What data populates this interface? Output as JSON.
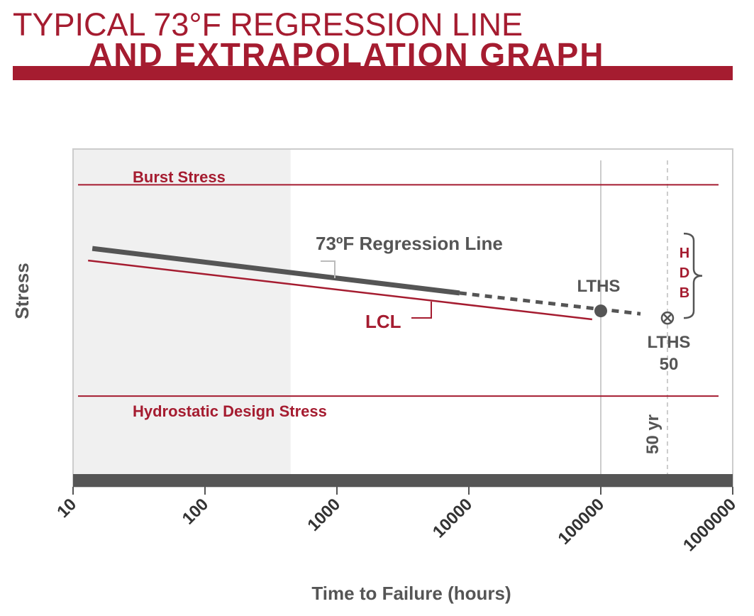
{
  "title": "TYPICAL 73°F REGRESSION LINE",
  "subtitle": "AND EXTRAPOLATION GRAPH",
  "chart_data": {
    "type": "line",
    "x_label": "Time to Failure (hours)",
    "y_label": "Stress",
    "xscale": "log",
    "xlim": [
      10,
      1000000
    ],
    "xticks": [
      10,
      100,
      1000,
      10000,
      100000,
      1000000
    ],
    "ylim": [
      0,
      100
    ],
    "shaded_x": [
      10,
      440
    ],
    "shade_color": "#f0f0f0",
    "reference_lines": [
      {
        "label": "Burst Stress",
        "value": 89,
        "color": "#a51c30"
      },
      {
        "label": "Hydrostatic Design Stress",
        "value": 24,
        "color": "#a51c30"
      }
    ],
    "series": [
      {
        "name": "73ºF Regression Line",
        "color": "#555555",
        "x": [
          14,
          8500
        ],
        "values": [
          69.4,
          55.7
        ]
      },
      {
        "name": "LCL",
        "color": "#a51c30",
        "x": [
          13,
          86000
        ],
        "values": [
          65.7,
          47.6
        ]
      }
    ],
    "extrapolation": {
      "color": "#555555",
      "dashed": true,
      "x": [
        8500,
        200000
      ],
      "values": [
        55.7,
        49.3
      ]
    },
    "points": [
      {
        "label": "LTHS",
        "x": 100000,
        "value": 50.2,
        "marker": "dot",
        "color": "#555555"
      },
      {
        "label": [
          "LTHS",
          "50"
        ],
        "x": 320000,
        "value": 48,
        "marker": "cross",
        "color": "#555555"
      }
    ],
    "vlines": [
      {
        "x": 100000,
        "dashed": false,
        "color": "#cccccc"
      },
      {
        "x": 320000,
        "dashed": true,
        "color": "#cccccc",
        "label": "50 yr"
      }
    ],
    "bracket": {
      "label": [
        "H",
        "D",
        "B"
      ],
      "range": [
        48,
        74
      ],
      "color": "#555555"
    }
  }
}
